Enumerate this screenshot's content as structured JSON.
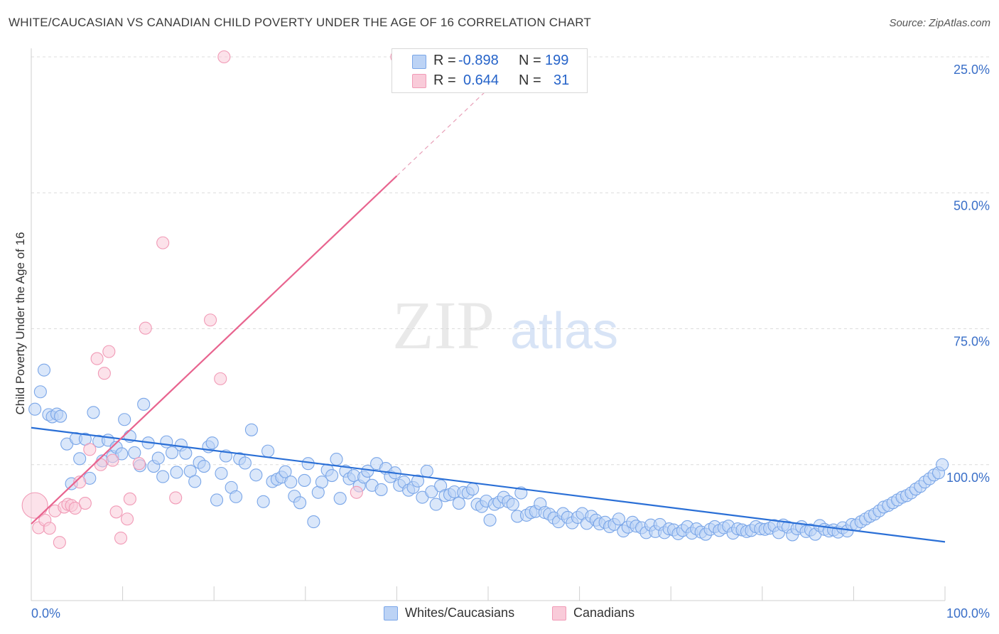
{
  "header": {
    "title": "WHITE/CAUCASIAN VS CANADIAN CHILD POVERTY UNDER THE AGE OF 16 CORRELATION CHART",
    "source": "Source: ZipAtlas.com"
  },
  "watermark": {
    "zip": "ZIP",
    "atlas": "atlas"
  },
  "legend": {
    "r_label": "R =",
    "n_label": "N =",
    "entries": [
      {
        "r": "-0.898",
        "n": "199",
        "color": "#7aa6e8"
      },
      {
        "r": "0.644",
        "n": "31",
        "color": "#f19ab6"
      }
    ]
  },
  "axes": {
    "ylabel": "Child Poverty Under the Age of 16",
    "x_min_label": "0.0%",
    "x_max_label": "100.0%",
    "y_tick_labels": [
      "100.0%",
      "75.0%",
      "50.0%",
      "25.0%"
    ]
  },
  "bottom_legend": {
    "series1": "Whites/Caucasians",
    "series2": "Canadians"
  },
  "chart_data": {
    "type": "scatter",
    "xlim": [
      0,
      100
    ],
    "ylim": [
      0,
      100
    ],
    "y_ticks": [
      25,
      50,
      75,
      100
    ],
    "grid": true,
    "series": [
      {
        "name": "Whites/Caucasians",
        "color": "#7aa6e8",
        "trend": {
          "x": [
            0,
            100
          ],
          "y": [
            31.8,
            10.8
          ]
        },
        "points": [
          [
            0.4,
            35.2
          ],
          [
            1.0,
            38.4
          ],
          [
            1.4,
            42.4
          ],
          [
            1.9,
            34.2
          ],
          [
            2.3,
            33.8
          ],
          [
            2.8,
            34.3
          ],
          [
            3.2,
            33.9
          ],
          [
            3.9,
            28.8
          ],
          [
            4.4,
            21.5
          ],
          [
            4.9,
            29.8
          ],
          [
            5.3,
            26.1
          ],
          [
            5.9,
            29.7
          ],
          [
            6.4,
            22.5
          ],
          [
            6.8,
            34.6
          ],
          [
            7.4,
            29.3
          ],
          [
            7.8,
            25.7
          ],
          [
            8.4,
            29.5
          ],
          [
            8.9,
            26.5
          ],
          [
            9.3,
            28.2
          ],
          [
            9.9,
            27.0
          ],
          [
            10.2,
            33.3
          ],
          [
            10.8,
            30.2
          ],
          [
            11.3,
            27.2
          ],
          [
            11.9,
            24.8
          ],
          [
            12.3,
            36.1
          ],
          [
            12.8,
            29.0
          ],
          [
            13.4,
            24.7
          ],
          [
            13.9,
            26.2
          ],
          [
            14.4,
            22.8
          ],
          [
            14.8,
            29.2
          ],
          [
            15.4,
            27.2
          ],
          [
            15.9,
            23.6
          ],
          [
            16.4,
            28.6
          ],
          [
            16.9,
            27.1
          ],
          [
            17.4,
            23.8
          ],
          [
            17.9,
            21.9
          ],
          [
            18.4,
            25.4
          ],
          [
            18.9,
            24.7
          ],
          [
            19.4,
            28.3
          ],
          [
            19.8,
            29.0
          ],
          [
            20.3,
            18.5
          ],
          [
            20.8,
            23.4
          ],
          [
            21.3,
            26.6
          ],
          [
            21.9,
            20.8
          ],
          [
            22.4,
            19.1
          ],
          [
            22.8,
            26.1
          ],
          [
            23.4,
            25.3
          ],
          [
            24.1,
            31.4
          ],
          [
            24.6,
            23.1
          ],
          [
            25.4,
            18.2
          ],
          [
            25.9,
            27.5
          ],
          [
            26.4,
            21.9
          ],
          [
            26.9,
            22.3
          ],
          [
            27.4,
            22.7
          ],
          [
            27.8,
            23.7
          ],
          [
            28.4,
            21.8
          ],
          [
            28.8,
            19.2
          ],
          [
            29.4,
            18.0
          ],
          [
            29.9,
            22.1
          ],
          [
            30.3,
            25.2
          ],
          [
            30.9,
            14.5
          ],
          [
            31.4,
            19.9
          ],
          [
            31.8,
            21.8
          ],
          [
            32.4,
            24.0
          ],
          [
            32.9,
            23.0
          ],
          [
            33.4,
            26.0
          ],
          [
            33.8,
            18.8
          ],
          [
            34.4,
            23.8
          ],
          [
            34.8,
            22.4
          ],
          [
            35.3,
            23.0
          ],
          [
            35.9,
            21.1
          ],
          [
            36.4,
            22.7
          ],
          [
            36.8,
            23.8
          ],
          [
            37.3,
            21.2
          ],
          [
            37.8,
            25.2
          ],
          [
            38.3,
            20.4
          ],
          [
            38.8,
            24.3
          ],
          [
            39.3,
            22.8
          ],
          [
            39.8,
            23.5
          ],
          [
            40.3,
            21.2
          ],
          [
            40.8,
            21.8
          ],
          [
            41.3,
            20.3
          ],
          [
            41.8,
            20.8
          ],
          [
            42.3,
            22.0
          ],
          [
            42.8,
            19.0
          ],
          [
            43.3,
            23.8
          ],
          [
            43.8,
            20.0
          ],
          [
            44.3,
            17.7
          ],
          [
            44.8,
            21.1
          ],
          [
            45.3,
            19.3
          ],
          [
            45.8,
            19.5
          ],
          [
            46.3,
            20.0
          ],
          [
            46.8,
            17.9
          ],
          [
            47.3,
            19.9
          ],
          [
            47.8,
            19.8
          ],
          [
            48.3,
            20.5
          ],
          [
            48.8,
            17.7
          ],
          [
            49.3,
            17.3
          ],
          [
            49.8,
            18.3
          ],
          [
            50.2,
            14.8
          ],
          [
            50.7,
            17.7
          ],
          [
            51.2,
            18.1
          ],
          [
            51.7,
            19.0
          ],
          [
            52.2,
            18.2
          ],
          [
            52.7,
            17.7
          ],
          [
            53.2,
            15.5
          ],
          [
            53.6,
            19.8
          ],
          [
            54.2,
            15.7
          ],
          [
            54.7,
            16.2
          ],
          [
            55.2,
            16.4
          ],
          [
            55.7,
            17.8
          ],
          [
            56.2,
            16.2
          ],
          [
            56.7,
            15.9
          ],
          [
            57.2,
            15.2
          ],
          [
            57.7,
            14.5
          ],
          [
            58.2,
            16.0
          ],
          [
            58.7,
            15.3
          ],
          [
            59.2,
            14.3
          ],
          [
            59.8,
            15.3
          ],
          [
            60.3,
            16.0
          ],
          [
            60.8,
            14.2
          ],
          [
            61.3,
            15.5
          ],
          [
            61.8,
            14.8
          ],
          [
            62.2,
            14.1
          ],
          [
            62.8,
            14.4
          ],
          [
            63.3,
            13.6
          ],
          [
            63.8,
            14.0
          ],
          [
            64.3,
            15.0
          ],
          [
            64.8,
            12.8
          ],
          [
            65.3,
            13.5
          ],
          [
            65.8,
            14.4
          ],
          [
            66.2,
            13.7
          ],
          [
            66.8,
            13.4
          ],
          [
            67.3,
            12.5
          ],
          [
            67.8,
            13.9
          ],
          [
            68.3,
            12.7
          ],
          [
            68.8,
            14.0
          ],
          [
            69.3,
            12.5
          ],
          [
            69.8,
            13.2
          ],
          [
            70.3,
            13.0
          ],
          [
            70.8,
            12.3
          ],
          [
            71.3,
            12.9
          ],
          [
            71.8,
            13.6
          ],
          [
            72.3,
            12.4
          ],
          [
            72.8,
            13.2
          ],
          [
            73.3,
            12.6
          ],
          [
            73.8,
            12.2
          ],
          [
            74.3,
            13.1
          ],
          [
            74.8,
            13.6
          ],
          [
            75.3,
            12.9
          ],
          [
            75.8,
            13.4
          ],
          [
            76.3,
            13.7
          ],
          [
            76.8,
            12.4
          ],
          [
            77.3,
            13.2
          ],
          [
            77.8,
            13.0
          ],
          [
            78.3,
            12.7
          ],
          [
            78.8,
            12.9
          ],
          [
            79.3,
            13.6
          ],
          [
            79.8,
            13.2
          ],
          [
            80.3,
            13.1
          ],
          [
            80.8,
            13.3
          ],
          [
            81.3,
            13.8
          ],
          [
            81.8,
            12.5
          ],
          [
            82.3,
            13.9
          ],
          [
            82.8,
            13.5
          ],
          [
            83.3,
            12.1
          ],
          [
            83.8,
            13.2
          ],
          [
            84.3,
            13.6
          ],
          [
            84.8,
            12.7
          ],
          [
            85.3,
            13.0
          ],
          [
            85.8,
            12.2
          ],
          [
            86.3,
            13.8
          ],
          [
            86.8,
            13.1
          ],
          [
            87.3,
            12.8
          ],
          [
            87.8,
            13.0
          ],
          [
            88.3,
            12.6
          ],
          [
            88.8,
            13.4
          ],
          [
            89.3,
            12.8
          ],
          [
            89.8,
            14.0
          ],
          [
            90.3,
            13.9
          ],
          [
            90.8,
            14.5
          ],
          [
            91.3,
            15.0
          ],
          [
            91.8,
            15.5
          ],
          [
            92.3,
            15.9
          ],
          [
            92.8,
            16.5
          ],
          [
            93.3,
            17.2
          ],
          [
            93.8,
            17.5
          ],
          [
            94.3,
            18.0
          ],
          [
            94.8,
            18.5
          ],
          [
            95.3,
            19.0
          ],
          [
            95.8,
            19.3
          ],
          [
            96.3,
            19.8
          ],
          [
            96.8,
            20.5
          ],
          [
            97.3,
            21.0
          ],
          [
            97.8,
            21.8
          ],
          [
            98.3,
            22.4
          ],
          [
            98.8,
            23.1
          ],
          [
            99.3,
            23.5
          ],
          [
            99.7,
            25.0
          ]
        ]
      },
      {
        "name": "Canadians",
        "color": "#f19ab6",
        "trend": {
          "x": [
            0,
            40
          ],
          "y": [
            14.1,
            78.1
          ]
        },
        "points": [
          [
            0.4,
            17.5
          ],
          [
            0.8,
            13.4
          ],
          [
            1.5,
            14.8
          ],
          [
            2.0,
            13.3
          ],
          [
            2.6,
            16.5
          ],
          [
            3.1,
            10.7
          ],
          [
            3.6,
            17.2
          ],
          [
            4.0,
            17.7
          ],
          [
            4.4,
            17.5
          ],
          [
            4.8,
            17.0
          ],
          [
            5.3,
            21.8
          ],
          [
            5.9,
            17.9
          ],
          [
            6.4,
            27.8
          ],
          [
            7.2,
            44.5
          ],
          [
            7.6,
            25.0
          ],
          [
            8.0,
            41.8
          ],
          [
            8.5,
            45.8
          ],
          [
            8.9,
            25.8
          ],
          [
            9.3,
            16.3
          ],
          [
            9.8,
            11.5
          ],
          [
            10.5,
            15.0
          ],
          [
            10.8,
            18.7
          ],
          [
            11.8,
            25.2
          ],
          [
            12.5,
            50.1
          ],
          [
            14.4,
            65.8
          ],
          [
            15.8,
            18.9
          ],
          [
            19.6,
            51.6
          ],
          [
            20.7,
            40.8
          ],
          [
            21.1,
            100.0
          ],
          [
            35.6,
            19.9
          ],
          [
            40.0,
            100.0
          ]
        ]
      }
    ]
  }
}
